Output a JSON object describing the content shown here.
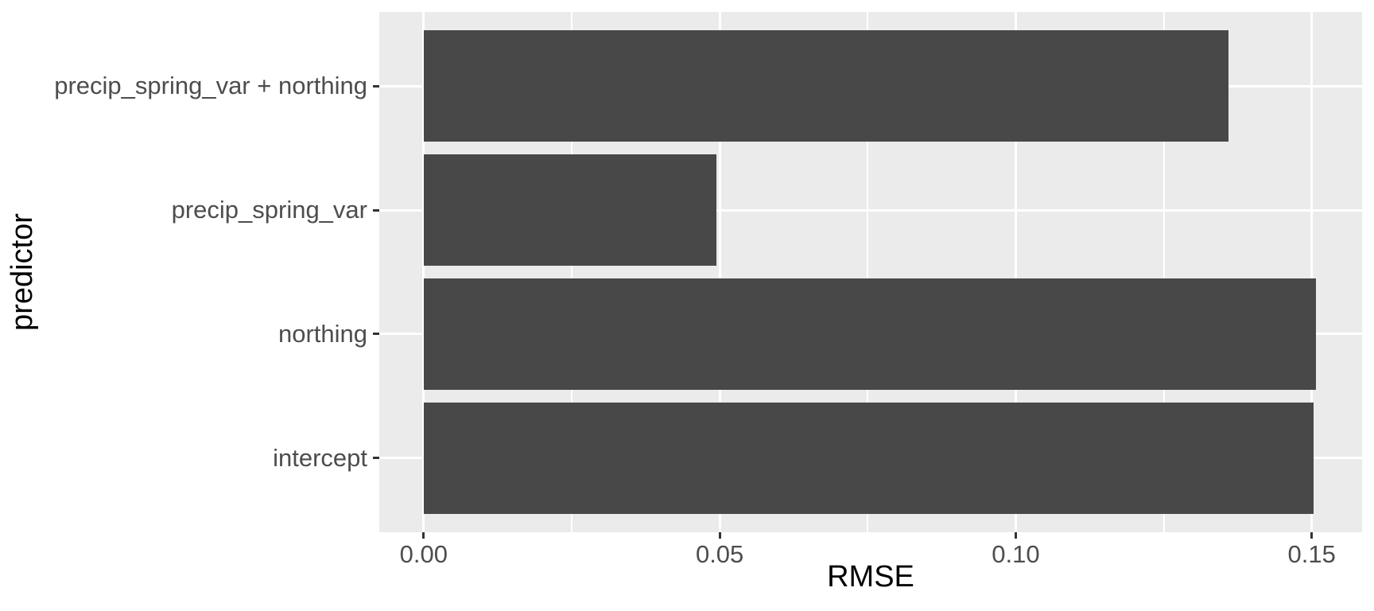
{
  "chart_data": {
    "type": "bar",
    "orientation": "horizontal",
    "title": "",
    "xlabel": "RMSE",
    "ylabel": "predictor",
    "categories": [
      "precip_spring_var + northing",
      "precip_spring_var",
      "northing",
      "intercept"
    ],
    "values": [
      0.136,
      0.0495,
      0.1507,
      0.1503
    ],
    "x_ticks": [
      0,
      0.05,
      0.1,
      0.15
    ],
    "x_tick_labels": [
      "0.00",
      "0.05",
      "0.10",
      "0.15"
    ],
    "x_minor_ticks": [
      0.025,
      0.075,
      0.125
    ],
    "xlim": [
      -0.0075,
      0.1585
    ],
    "ydomain": [
      0.4,
      4.6
    ],
    "bar_thickness": 0.9,
    "legend": "none",
    "grid": "white major gridlines at x ticks and category rows, white minor gridlines between x ticks",
    "theme": "ggplot2 theme_gray",
    "colors": {
      "bar_fill": "#484848",
      "panel_background": "#EBEBEB",
      "gridline": "#FFFFFF",
      "tick_mark": "#333333",
      "tick_label_text": "#4D4D4D",
      "axis_title_text": "#000000",
      "page_background": "#FFFFFF"
    }
  }
}
